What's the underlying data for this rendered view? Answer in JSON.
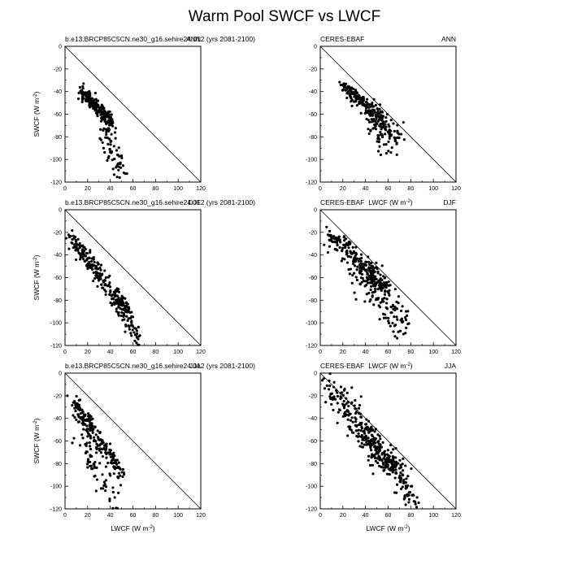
{
  "title": "Warm Pool SWCF vs LWCF",
  "ylabel_text": "SWCF (W m",
  "xlabel_text": "LWCF (W m",
  "unit_exp": "-2",
  "unit_close": ")",
  "colors": {
    "points": "#000000",
    "axes": "#000000",
    "background": "#ffffff"
  },
  "chart_data": [
    {
      "type": "scatter",
      "row": 0,
      "col": 0,
      "left_label": "b.e13.BRCP85C5CN.ne30_g16.sehire24.012 (yrs 2081-2100)",
      "center_label": "",
      "right_label": "ANN",
      "x_ticks": [
        "0",
        "20",
        "40",
        "60",
        "80",
        "100",
        "120"
      ],
      "y_ticks": [
        "0",
        "-20",
        "-40",
        "-60",
        "-80",
        "-100",
        "-120"
      ],
      "xlim": [
        0,
        120
      ],
      "ylim": [
        -120,
        0
      ],
      "grid": false,
      "reference_line": [
        [
          0,
          0
        ],
        [
          120,
          -120
        ]
      ],
      "clusters": [
        {
          "start": [
            14,
            -39
          ],
          "end": [
            42,
            -68
          ],
          "n": 190,
          "spread": 3
        },
        {
          "start": [
            34,
            -66
          ],
          "end": [
            50,
            -114
          ],
          "n": 70,
          "spread": 5
        }
      ]
    },
    {
      "type": "scatter",
      "row": 0,
      "col": 1,
      "left_label": "CERES-EBAF",
      "center_label": "",
      "right_label": "ANN",
      "x_ticks": [
        "0",
        "20",
        "40",
        "60",
        "80",
        "100",
        "120"
      ],
      "y_ticks": [
        "0",
        "-20",
        "-40",
        "-60",
        "-80",
        "-100",
        "-120"
      ],
      "xlim": [
        0,
        120
      ],
      "ylim": [
        -120,
        0
      ],
      "grid": false,
      "reference_line": [
        [
          0,
          0
        ],
        [
          120,
          -120
        ]
      ],
      "clusters": [
        {
          "start": [
            20,
            -35
          ],
          "end": [
            55,
            -64
          ],
          "n": 170,
          "spread": 3
        },
        {
          "start": [
            42,
            -60
          ],
          "end": [
            65,
            -82
          ],
          "n": 110,
          "spread": 8
        }
      ]
    },
    {
      "type": "scatter",
      "row": 1,
      "col": 0,
      "left_label": "b.e13.BRCP85C5CN.ne30_g16.sehire24.012 (yrs 2081-2100)",
      "center_label": "",
      "right_label": "DJF",
      "x_ticks": [
        "0",
        "20",
        "40",
        "60",
        "80",
        "100",
        "120"
      ],
      "y_ticks": [
        "0",
        "-20",
        "-40",
        "-60",
        "-80",
        "-100",
        "-120"
      ],
      "xlim": [
        0,
        120
      ],
      "ylim": [
        -120,
        0
      ],
      "grid": false,
      "reference_line": [
        [
          0,
          0
        ],
        [
          120,
          -120
        ]
      ],
      "clusters": [
        {
          "start": [
            4,
            -24
          ],
          "end": [
            55,
            -90
          ],
          "n": 240,
          "spread": 4
        },
        {
          "start": [
            45,
            -80
          ],
          "end": [
            66,
            -116
          ],
          "n": 60,
          "spread": 5
        }
      ]
    },
    {
      "type": "scatter",
      "row": 1,
      "col": 1,
      "left_label": "CERES-EBAF",
      "center_label": "LWCF (W m",
      "right_label": "DJF",
      "x_ticks": [
        "0",
        "20",
        "40",
        "60",
        "80",
        "100",
        "120"
      ],
      "y_ticks": [
        "0",
        "-20",
        "-40",
        "-60",
        "-80",
        "-100",
        "-120"
      ],
      "xlim": [
        0,
        120
      ],
      "ylim": [
        -120,
        0
      ],
      "grid": false,
      "reference_line": [
        [
          0,
          0
        ],
        [
          120,
          -120
        ]
      ],
      "clusters": [
        {
          "start": [
            8,
            -22
          ],
          "end": [
            60,
            -70
          ],
          "n": 210,
          "spread": 4
        },
        {
          "start": [
            30,
            -50
          ],
          "end": [
            75,
            -105
          ],
          "n": 160,
          "spread": 8
        }
      ]
    },
    {
      "type": "scatter",
      "row": 2,
      "col": 0,
      "left_label": "b.e13.BRCP85C5CN.ne30_g16.sehire24.012 (yrs 2081-2100)",
      "center_label": "",
      "right_label": "JJA",
      "x_ticks": [
        "0",
        "20",
        "40",
        "60",
        "80",
        "100",
        "120"
      ],
      "y_ticks": [
        "0",
        "-20",
        "-40",
        "-60",
        "-80",
        "-100",
        "-120"
      ],
      "xlim": [
        0,
        120
      ],
      "ylim": [
        -120,
        0
      ],
      "grid": false,
      "reference_line": [
        [
          0,
          0
        ],
        [
          120,
          -120
        ]
      ],
      "clusters": [
        {
          "start": [
            8,
            -26
          ],
          "end": [
            50,
            -90
          ],
          "n": 200,
          "spread": 4
        },
        {
          "start": [
            15,
            -60
          ],
          "end": [
            45,
            -112
          ],
          "n": 60,
          "spread": 7
        }
      ]
    },
    {
      "type": "scatter",
      "row": 2,
      "col": 1,
      "left_label": "CERES-EBAF",
      "center_label": "LWCF (W m",
      "right_label": "JJA",
      "x_ticks": [
        "0",
        "20",
        "40",
        "60",
        "80",
        "100",
        "120"
      ],
      "y_ticks": [
        "0",
        "-20",
        "-40",
        "-60",
        "-80",
        "-100",
        "-120"
      ],
      "xlim": [
        0,
        120
      ],
      "ylim": [
        -120,
        0
      ],
      "grid": false,
      "reference_line": [
        [
          0,
          0
        ],
        [
          120,
          -120
        ]
      ],
      "clusters": [
        {
          "start": [
            8,
            -12
          ],
          "end": [
            82,
            -108
          ],
          "n": 260,
          "spread": 7
        },
        {
          "start": [
            35,
            -50
          ],
          "end": [
            70,
            -90
          ],
          "n": 130,
          "spread": 6
        }
      ]
    }
  ]
}
